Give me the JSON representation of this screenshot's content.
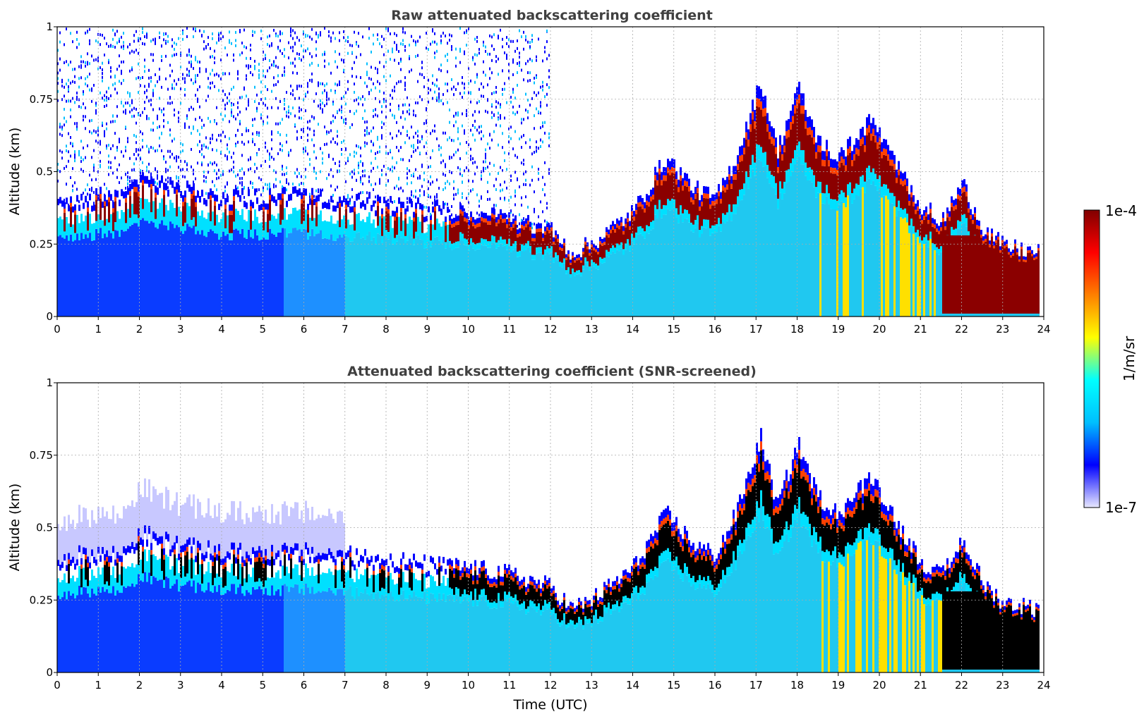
{
  "chart_data": [
    {
      "type": "heatmap",
      "title": "Raw attenuated backscattering coefficient",
      "xlabel": "",
      "ylabel": "Altitude (km)",
      "xlim": [
        0,
        24
      ],
      "ylim": [
        0,
        1
      ],
      "xticks": [
        "0",
        "1",
        "2",
        "3",
        "4",
        "5",
        "6",
        "7",
        "8",
        "9",
        "10",
        "11",
        "12",
        "13",
        "14",
        "15",
        "16",
        "17",
        "18",
        "19",
        "20",
        "21",
        "22",
        "23",
        "24"
      ],
      "yticks": [
        "0",
        "0.25",
        "0.5",
        "0.75",
        "1"
      ],
      "grid": true,
      "layer_top_km": [
        [
          0,
          0.36
        ],
        [
          1,
          0.38
        ],
        [
          1.5,
          0.37
        ],
        [
          2,
          0.44
        ],
        [
          3,
          0.4
        ],
        [
          4,
          0.38
        ],
        [
          5,
          0.38
        ],
        [
          6,
          0.38
        ],
        [
          7,
          0.37
        ],
        [
          8,
          0.36
        ],
        [
          9,
          0.34
        ],
        [
          10,
          0.33
        ],
        [
          11,
          0.31
        ],
        [
          12,
          0.27
        ],
        [
          12.5,
          0.2
        ],
        [
          13,
          0.23
        ],
        [
          14,
          0.33
        ],
        [
          14.8,
          0.5
        ],
        [
          15.5,
          0.4
        ],
        [
          16,
          0.37
        ],
        [
          16.5,
          0.5
        ],
        [
          17.1,
          0.74
        ],
        [
          17.5,
          0.52
        ],
        [
          18,
          0.72
        ],
        [
          18.5,
          0.55
        ],
        [
          19,
          0.5
        ],
        [
          19.8,
          0.62
        ],
        [
          20.5,
          0.45
        ],
        [
          21,
          0.35
        ],
        [
          21.5,
          0.3
        ],
        [
          22,
          0.42
        ],
        [
          22.5,
          0.28
        ],
        [
          23,
          0.22
        ],
        [
          23.9,
          0.2
        ]
      ],
      "noise_top_km": 1.0,
      "clear_after_hour": 12
    },
    {
      "type": "heatmap",
      "title": "Attenuated backscattering coefficient (SNR-screened)",
      "xlabel": "Time (UTC)",
      "ylabel": "Altitude (km)",
      "xlim": [
        0,
        24
      ],
      "ylim": [
        0,
        1
      ],
      "xticks": [
        "0",
        "1",
        "2",
        "3",
        "4",
        "5",
        "6",
        "7",
        "8",
        "9",
        "10",
        "11",
        "12",
        "13",
        "14",
        "15",
        "16",
        "17",
        "18",
        "19",
        "20",
        "21",
        "22",
        "23",
        "24"
      ],
      "yticks": [
        "0",
        "0.25",
        "0.5",
        "0.75",
        "1"
      ],
      "grid": true,
      "layer_top_km": [
        [
          0,
          0.36
        ],
        [
          1,
          0.38
        ],
        [
          1.5,
          0.37
        ],
        [
          2,
          0.44
        ],
        [
          3,
          0.4
        ],
        [
          4,
          0.38
        ],
        [
          5,
          0.38
        ],
        [
          6,
          0.38
        ],
        [
          7,
          0.37
        ],
        [
          8,
          0.36
        ],
        [
          9,
          0.34
        ],
        [
          10,
          0.33
        ],
        [
          11,
          0.31
        ],
        [
          12,
          0.27
        ],
        [
          12.5,
          0.2
        ],
        [
          13,
          0.23
        ],
        [
          14,
          0.33
        ],
        [
          14.8,
          0.5
        ],
        [
          15.5,
          0.4
        ],
        [
          16,
          0.37
        ],
        [
          16.5,
          0.5
        ],
        [
          17.1,
          0.74
        ],
        [
          17.5,
          0.52
        ],
        [
          18,
          0.72
        ],
        [
          18.5,
          0.55
        ],
        [
          19,
          0.5
        ],
        [
          19.8,
          0.62
        ],
        [
          20.5,
          0.45
        ],
        [
          21,
          0.35
        ],
        [
          21.5,
          0.3
        ],
        [
          22,
          0.42
        ],
        [
          22.5,
          0.28
        ],
        [
          23,
          0.22
        ],
        [
          23.9,
          0.2
        ]
      ],
      "screened": true
    }
  ],
  "colorbar": {
    "max_label": "1e-4",
    "min_label": "1e-7",
    "label": "1/m/sr",
    "colormap": "jet",
    "colors": [
      "#e8e8ff",
      "#0000ff",
      "#00bfff",
      "#00ffff",
      "#ffff00",
      "#ff8000",
      "#ff0000",
      "#800000"
    ]
  }
}
